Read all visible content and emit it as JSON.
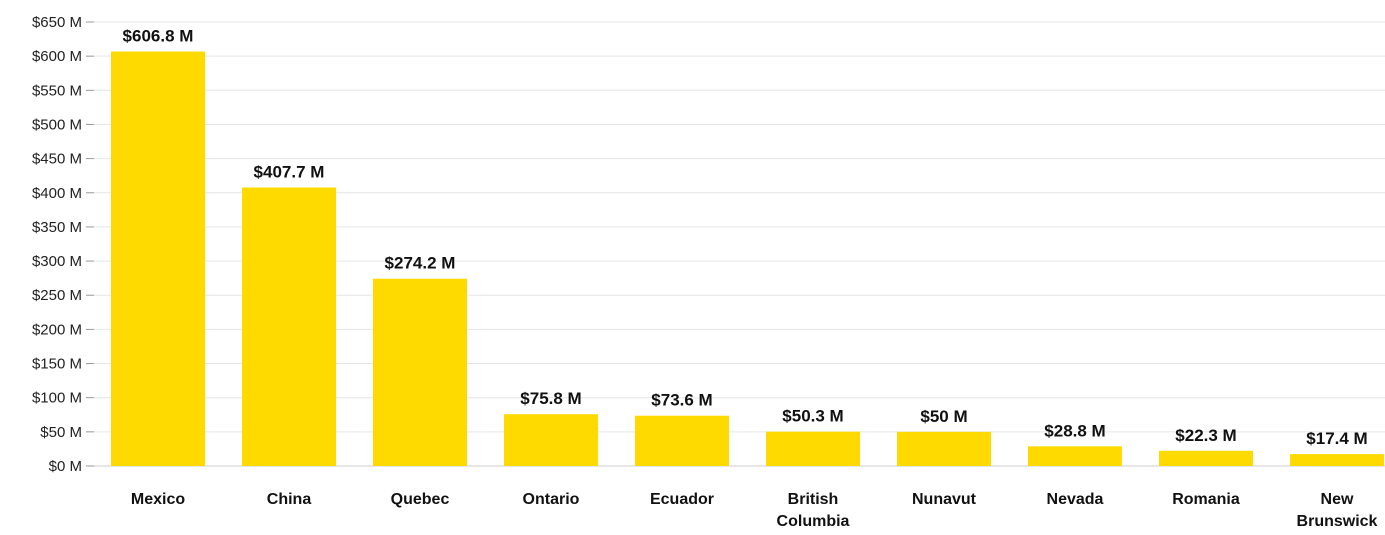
{
  "chart_data": {
    "type": "bar",
    "title": "",
    "xlabel": "",
    "ylabel": "",
    "categories": [
      "Mexico",
      "China",
      "Quebec",
      "Ontario",
      "Ecuador",
      "British Columbia",
      "Nunavut",
      "Nevada",
      "Romania",
      "New Brunswick"
    ],
    "values": [
      606.8,
      407.7,
      274.2,
      75.8,
      73.6,
      50.3,
      50,
      28.8,
      22.3,
      17.4
    ],
    "value_labels": [
      "$606.8 M",
      "$407.7 M",
      "$274.2 M",
      "$75.8 M",
      "$73.6 M",
      "$50.3 M",
      "$50 M",
      "$28.8 M",
      "$22.3 M",
      "$17.4 M"
    ],
    "ylim": [
      0,
      650
    ],
    "yticks": [
      0,
      50,
      100,
      150,
      200,
      250,
      300,
      350,
      400,
      450,
      500,
      550,
      600,
      650
    ],
    "ytick_labels": [
      "$0 M",
      "$50 M",
      "$100 M",
      "$150 M",
      "$200 M",
      "$250 M",
      "$300 M",
      "$350 M",
      "$400 M",
      "$450 M",
      "$500 M",
      "$550 M",
      "$600 M",
      "$650 M"
    ],
    "grid": true,
    "legend": "none",
    "bar_color": "#FFDA00"
  }
}
